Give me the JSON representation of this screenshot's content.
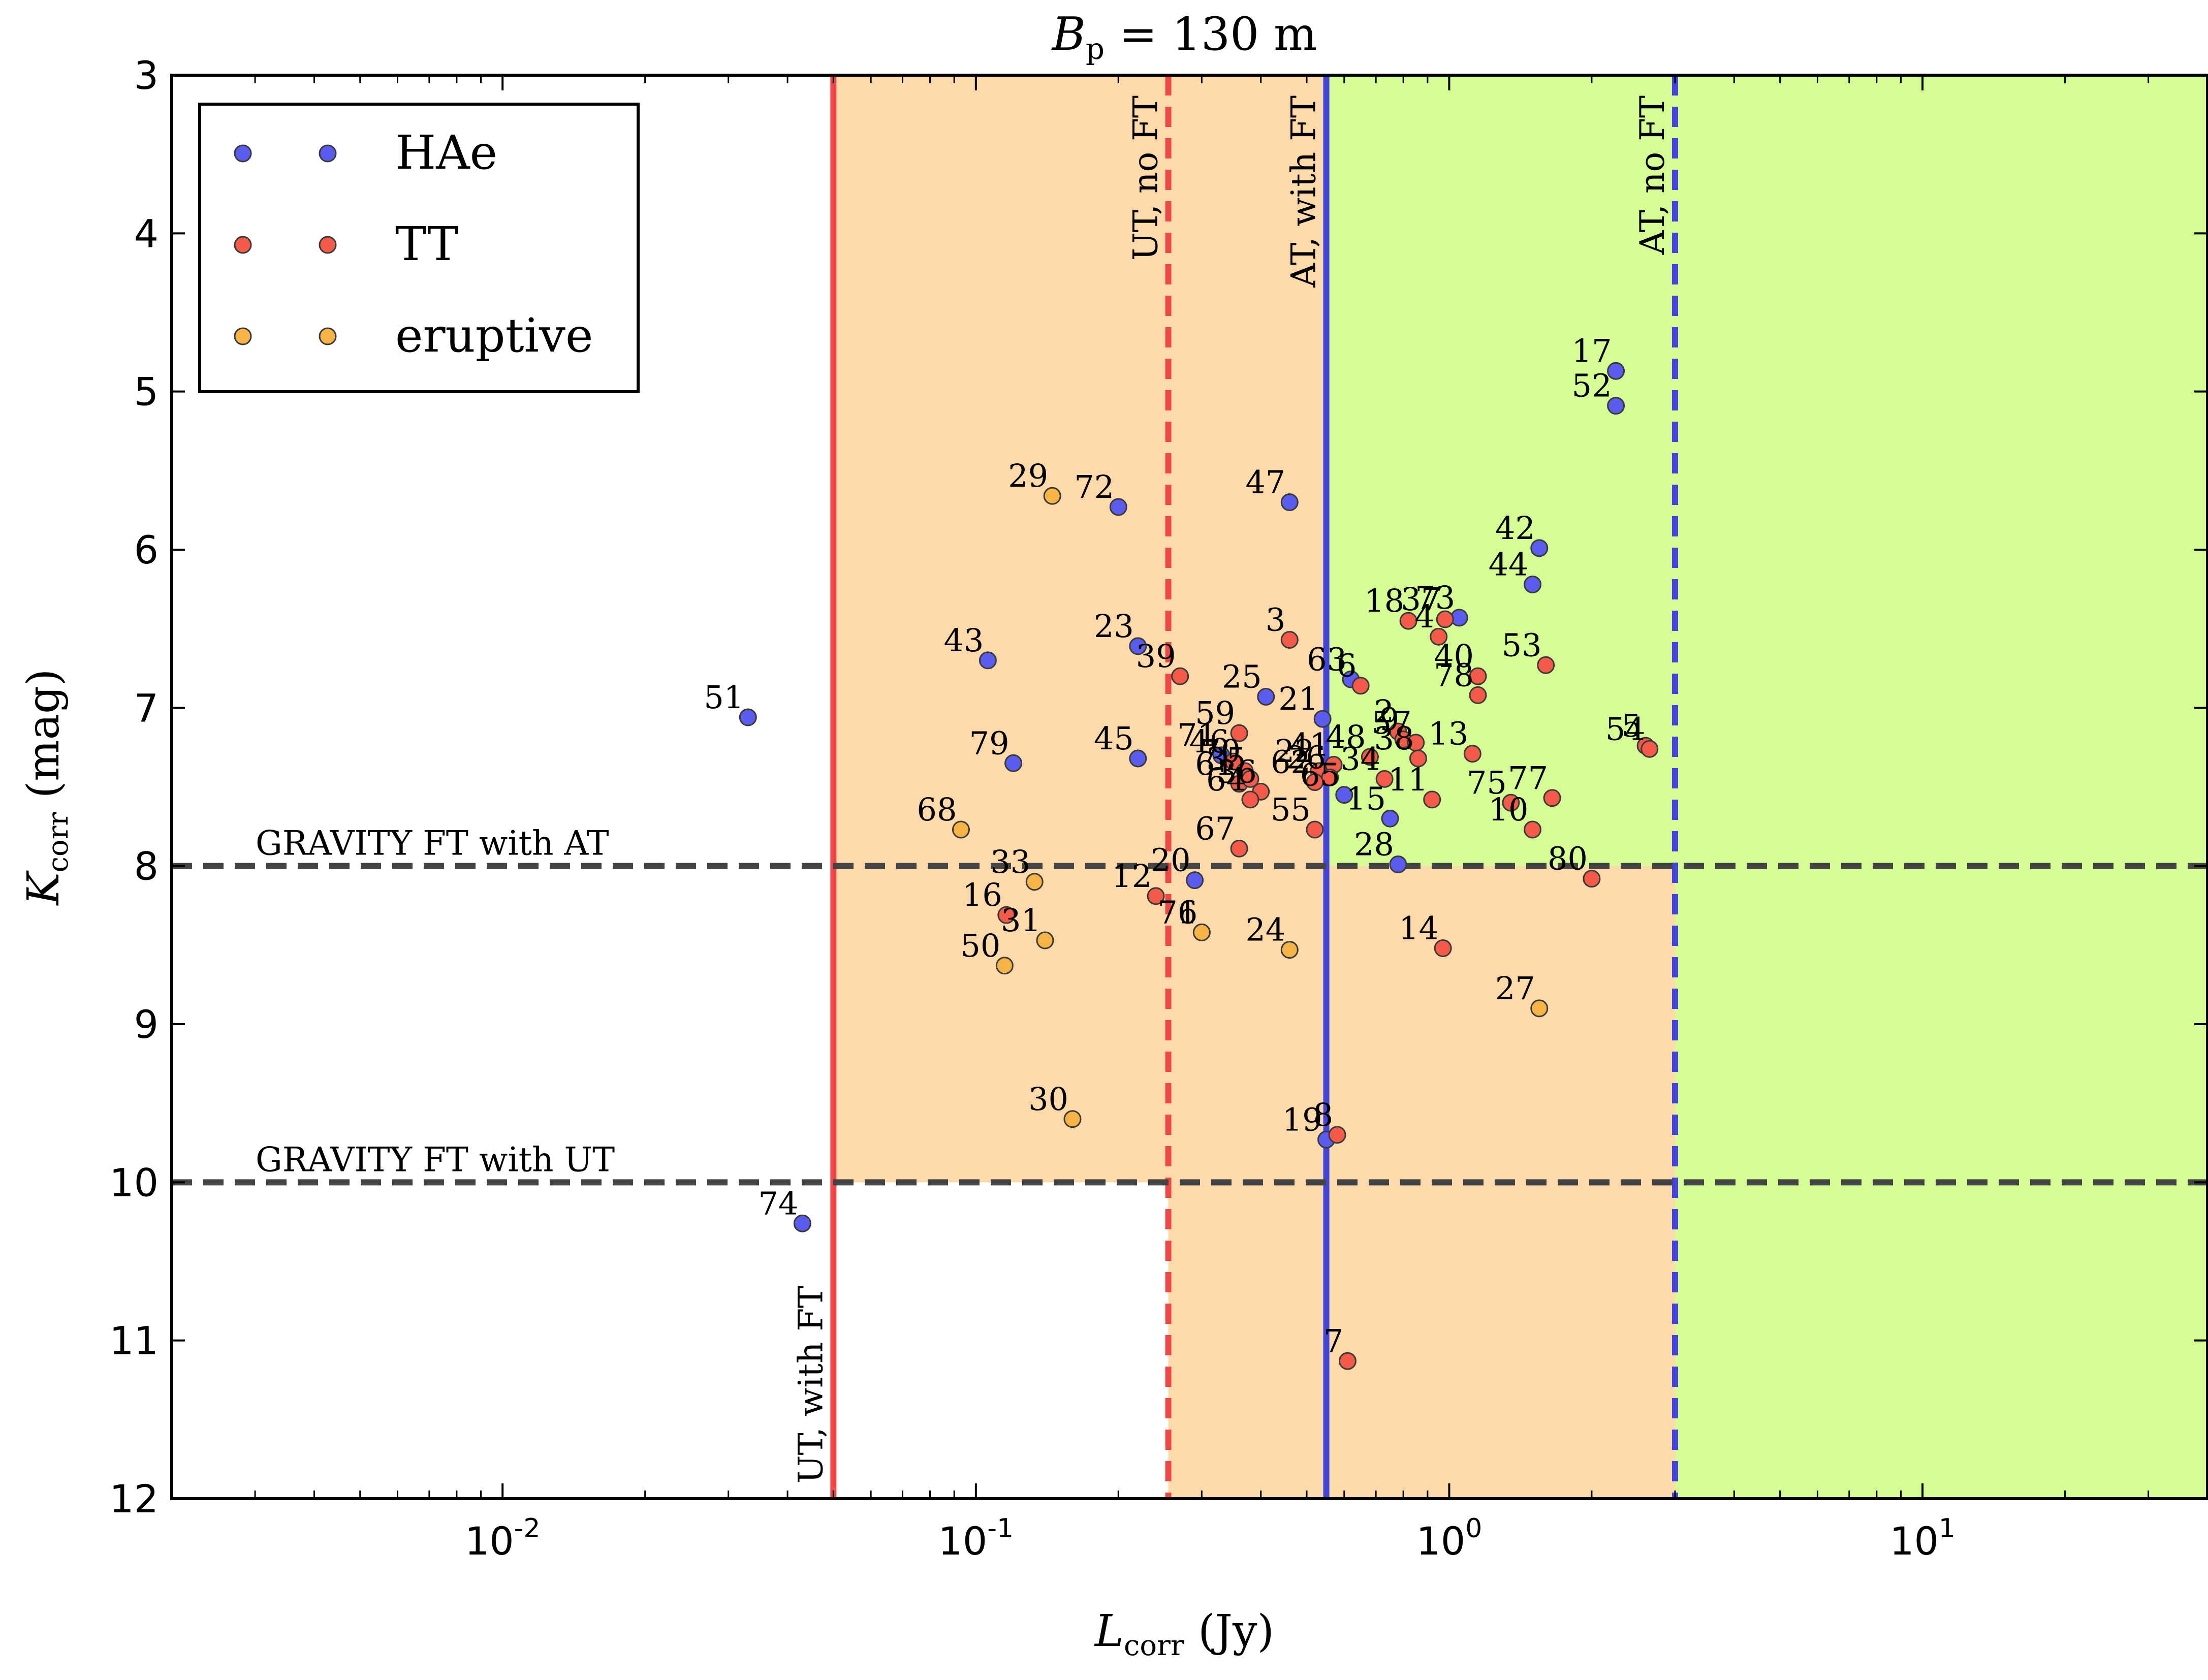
{
  "chart_data": {
    "type": "scatter",
    "title": "B_p = 130 m",
    "title_parts": {
      "symbol": "B",
      "subscript": "p",
      "rest": " = 130 m"
    },
    "xlabel": "L_corr (Jy)",
    "xlabel_parts": {
      "symbol": "L",
      "subscript": "corr",
      "rest": " (Jy)"
    },
    "ylabel": "K_corr (mag)",
    "ylabel_parts": {
      "symbol": "K",
      "subscript": "corr",
      "rest": " (mag)"
    },
    "x_scale": "log",
    "xlim": [
      0.002,
      40
    ],
    "ylim": [
      12,
      3
    ],
    "x_ticks": [
      {
        "value": 0.01,
        "base": "10",
        "exp": "-2"
      },
      {
        "value": 0.1,
        "base": "10",
        "exp": "-1"
      },
      {
        "value": 1,
        "base": "10",
        "exp": "0"
      },
      {
        "value": 10,
        "base": "10",
        "exp": "1"
      }
    ],
    "y_ticks": [
      "3",
      "4",
      "5",
      "6",
      "7",
      "8",
      "9",
      "10",
      "11",
      "12"
    ],
    "legend": {
      "position": "top-left",
      "entries": [
        {
          "label": "HAe",
          "color": "#5b5bef"
        },
        {
          "label": "TT",
          "color": "#f45a4a"
        },
        {
          "label": "eruptive",
          "color": "#f5b445"
        }
      ]
    },
    "regions": [
      {
        "x": [
          0.05,
          3.0
        ],
        "y": [
          3,
          10
        ],
        "color": "#fdd9ab"
      },
      {
        "x": [
          0.255,
          3.0
        ],
        "y": [
          10,
          12
        ],
        "color": "#fdd9ab"
      },
      {
        "x": [
          0.55,
          40
        ],
        "y": [
          3,
          8
        ],
        "color": "#d5fc95"
      },
      {
        "x": [
          3.0,
          40
        ],
        "y": [
          8,
          12
        ],
        "color": "#d5fc95"
      }
    ],
    "vertical_lines": [
      {
        "x": 0.05,
        "style": "solid",
        "color": "#f04848",
        "label": "UT, with FT",
        "label_anchor": "bottom"
      },
      {
        "x": 0.255,
        "style": "dashed",
        "color": "#f04848",
        "label": "UT, no FT",
        "label_anchor": "top"
      },
      {
        "x": 0.55,
        "style": "solid",
        "color": "#4444dd",
        "label": "AT, with FT",
        "label_anchor": "top"
      },
      {
        "x": 3.0,
        "style": "dashed",
        "color": "#4444dd",
        "label": "AT, no FT",
        "label_anchor": "top"
      }
    ],
    "horizontal_lines": [
      {
        "y": 8,
        "style": "dashed",
        "color": "#444444",
        "label": "GRAVITY FT with AT"
      },
      {
        "y": 10,
        "style": "dashed",
        "color": "#444444",
        "label": "GRAVITY FT with UT"
      }
    ],
    "series": [
      {
        "name": "HAe",
        "color": "#5b5bef",
        "points": [
          {
            "id": "17",
            "x": 2.25,
            "y": 4.87
          },
          {
            "id": "52",
            "x": 2.25,
            "y": 5.09
          },
          {
            "id": "72",
            "x": 0.2,
            "y": 5.73
          },
          {
            "id": "47",
            "x": 0.46,
            "y": 5.7
          },
          {
            "id": "42",
            "x": 1.55,
            "y": 5.99
          },
          {
            "id": "44",
            "x": 1.5,
            "y": 6.22
          },
          {
            "id": "73",
            "x": 1.05,
            "y": 6.43
          },
          {
            "id": "43",
            "x": 0.106,
            "y": 6.7
          },
          {
            "id": "23",
            "x": 0.22,
            "y": 6.61
          },
          {
            "id": "25",
            "x": 0.41,
            "y": 6.93
          },
          {
            "id": "63",
            "x": 0.62,
            "y": 6.82
          },
          {
            "id": "21",
            "x": 0.54,
            "y": 7.07
          },
          {
            "id": "51",
            "x": 0.033,
            "y": 7.06
          },
          {
            "id": "79",
            "x": 0.12,
            "y": 7.35
          },
          {
            "id": "45",
            "x": 0.22,
            "y": 7.32
          },
          {
            "id": "71",
            "x": 0.33,
            "y": 7.3
          },
          {
            "id": "65",
            "x": 0.6,
            "y": 7.55
          },
          {
            "id": "15",
            "x": 0.75,
            "y": 7.7
          },
          {
            "id": "28",
            "x": 0.78,
            "y": 7.99
          },
          {
            "id": "20",
            "x": 0.29,
            "y": 8.09
          },
          {
            "id": "19",
            "x": 0.55,
            "y": 9.73
          },
          {
            "id": "74",
            "x": 0.043,
            "y": 10.26
          }
        ]
      },
      {
        "name": "TT",
        "color": "#f45a4a",
        "points": [
          {
            "id": "3",
            "x": 0.46,
            "y": 6.57
          },
          {
            "id": "39",
            "x": 0.27,
            "y": 6.8
          },
          {
            "id": "18",
            "x": 0.82,
            "y": 6.45
          },
          {
            "id": "37",
            "x": 0.98,
            "y": 6.44
          },
          {
            "id": "4",
            "x": 0.95,
            "y": 6.55
          },
          {
            "id": "6",
            "x": 0.65,
            "y": 6.86
          },
          {
            "id": "40",
            "x": 1.15,
            "y": 6.8
          },
          {
            "id": "78",
            "x": 1.15,
            "y": 6.92
          },
          {
            "id": "53",
            "x": 1.6,
            "y": 6.73
          },
          {
            "id": "59",
            "x": 0.36,
            "y": 7.16
          },
          {
            "id": "2",
            "x": 0.78,
            "y": 7.15
          },
          {
            "id": "9",
            "x": 0.8,
            "y": 7.2
          },
          {
            "id": "57",
            "x": 0.85,
            "y": 7.22
          },
          {
            "id": "13",
            "x": 1.12,
            "y": 7.29
          },
          {
            "id": "5",
            "x": 2.6,
            "y": 7.24
          },
          {
            "id": "54",
            "x": 2.65,
            "y": 7.26
          },
          {
            "id": "41",
            "x": 0.57,
            "y": 7.36
          },
          {
            "id": "22",
            "x": 0.53,
            "y": 7.4
          },
          {
            "id": "48",
            "x": 0.68,
            "y": 7.31
          },
          {
            "id": "26",
            "x": 0.56,
            "y": 7.44
          },
          {
            "id": "62",
            "x": 0.52,
            "y": 7.47
          },
          {
            "id": "46",
            "x": 0.35,
            "y": 7.34
          },
          {
            "id": "70",
            "x": 0.37,
            "y": 7.4
          },
          {
            "id": "61",
            "x": 0.36,
            "y": 7.48
          },
          {
            "id": "35",
            "x": 0.38,
            "y": 7.45
          },
          {
            "id": "36",
            "x": 0.4,
            "y": 7.53
          },
          {
            "id": "38",
            "x": 0.86,
            "y": 7.32
          },
          {
            "id": "34",
            "x": 0.73,
            "y": 7.45
          },
          {
            "id": "75",
            "x": 1.35,
            "y": 7.6
          },
          {
            "id": "77",
            "x": 1.65,
            "y": 7.57
          },
          {
            "id": "10",
            "x": 1.5,
            "y": 7.77
          },
          {
            "id": "11",
            "x": 0.92,
            "y": 7.58
          },
          {
            "id": "64",
            "x": 0.38,
            "y": 7.58
          },
          {
            "id": "55",
            "x": 0.52,
            "y": 7.77
          },
          {
            "id": "67",
            "x": 0.36,
            "y": 7.89
          },
          {
            "id": "80",
            "x": 2.0,
            "y": 8.08
          },
          {
            "id": "12",
            "x": 0.24,
            "y": 8.19
          },
          {
            "id": "16",
            "x": 0.116,
            "y": 8.31
          },
          {
            "id": "14",
            "x": 0.97,
            "y": 8.52
          },
          {
            "id": "8",
            "x": 0.58,
            "y": 9.7
          },
          {
            "id": "7",
            "x": 0.61,
            "y": 11.13
          }
        ]
      },
      {
        "name": "eruptive",
        "color": "#f5b445",
        "points": [
          {
            "id": "29",
            "x": 0.145,
            "y": 5.66
          },
          {
            "id": "68",
            "x": 0.093,
            "y": 7.77
          },
          {
            "id": "33",
            "x": 0.133,
            "y": 8.1
          },
          {
            "id": "31",
            "x": 0.14,
            "y": 8.47
          },
          {
            "id": "50",
            "x": 0.115,
            "y": 8.63
          },
          {
            "id": "76",
            "x": 0.3,
            "y": 8.42
          },
          {
            "id": "1",
            "x": 0.3,
            "y": 8.42
          },
          {
            "id": "24",
            "x": 0.46,
            "y": 8.53
          },
          {
            "id": "27",
            "x": 1.55,
            "y": 8.9
          },
          {
            "id": "30",
            "x": 0.16,
            "y": 9.6
          }
        ]
      }
    ]
  }
}
